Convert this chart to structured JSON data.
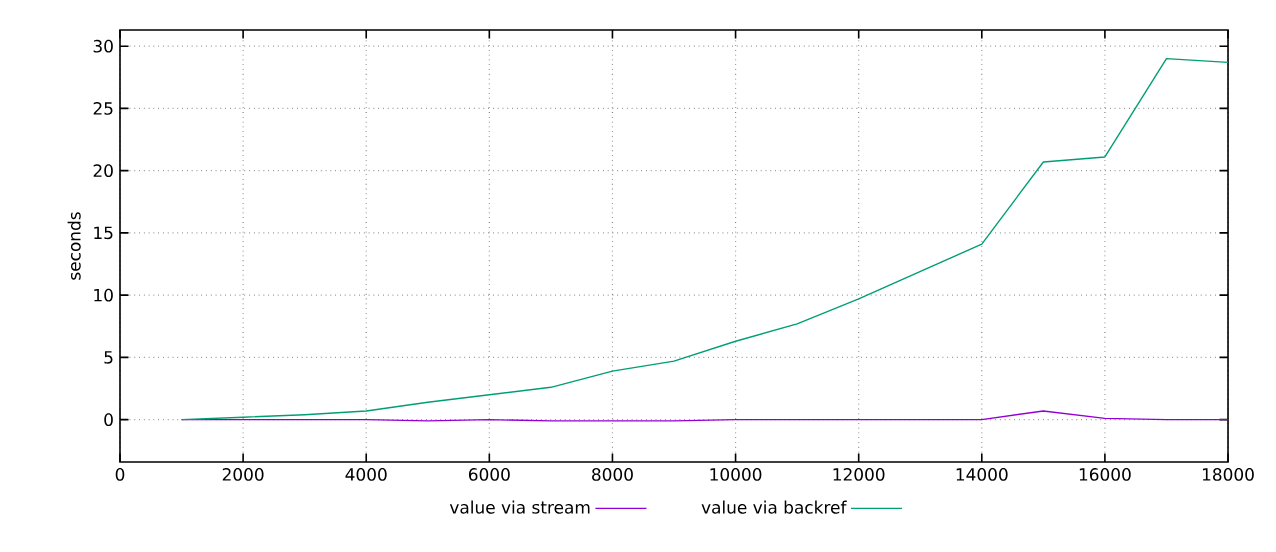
{
  "chart_data": {
    "type": "line",
    "ylabel": "seconds",
    "x": [
      1000,
      2000,
      3000,
      4000,
      5000,
      6000,
      7000,
      8000,
      9000,
      10000,
      11000,
      12000,
      13000,
      14000,
      15000,
      16000,
      17000,
      18000
    ],
    "series": [
      {
        "name": "value via stream",
        "color": "#9400d3",
        "values": [
          0,
          0,
          0,
          0,
          -0.1,
          0,
          -0.1,
          -0.1,
          -0.1,
          0,
          0,
          0,
          0,
          0,
          0.7,
          0.1,
          0,
          0
        ]
      },
      {
        "name": "value via backref",
        "color": "#009e73",
        "values": [
          0,
          0.2,
          0.4,
          0.7,
          1.4,
          2.0,
          2.6,
          3.9,
          4.7,
          6.3,
          7.7,
          9.7,
          11.9,
          14.1,
          20.7,
          21.1,
          29.0,
          28.7
        ]
      }
    ],
    "xlim": [
      0,
      18000
    ],
    "ylim": [
      -3.4,
      31.3
    ],
    "xticks": [
      0,
      2000,
      4000,
      6000,
      8000,
      10000,
      12000,
      14000,
      16000,
      18000
    ],
    "yticks": [
      0,
      5,
      10,
      15,
      20,
      25,
      30
    ],
    "grid": true,
    "legend": "bottom",
    "marker": "none",
    "line_style": "solid"
  }
}
